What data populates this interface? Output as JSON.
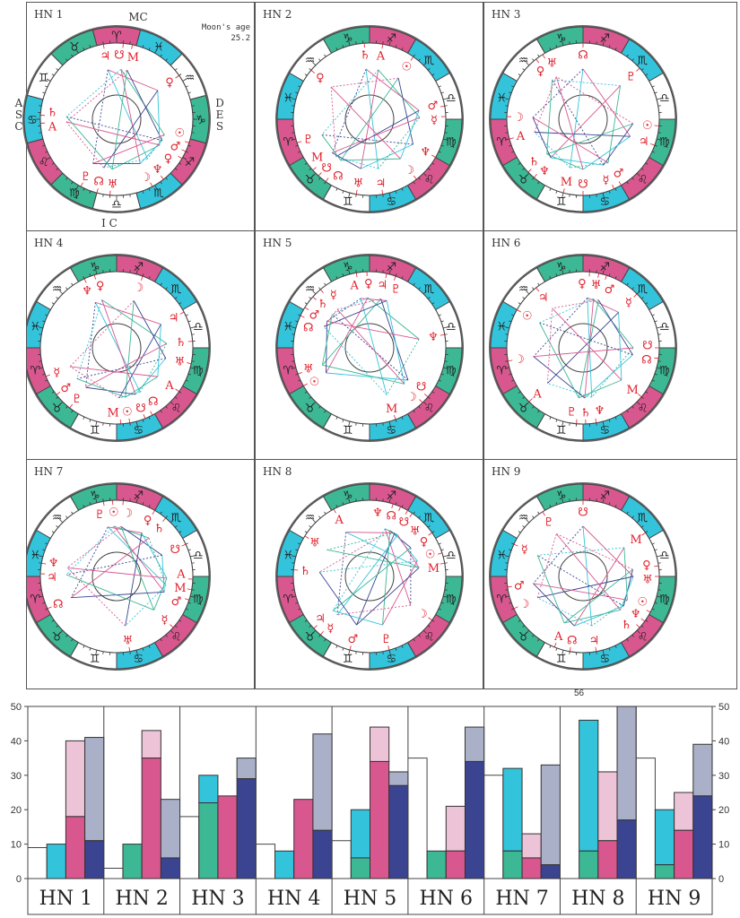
{
  "colors": {
    "fire": "#d9578f",
    "earth": "#3cb894",
    "air": "#ffffff",
    "water": "#33c4dc",
    "glyph": "#e01e2a",
    "ring_border": "#555555",
    "series_white": "#ffffff",
    "series_cyan": "#33c4dc",
    "series_green": "#3cb894",
    "series_pink_light": "#edc3d7",
    "series_pink": "#d9578f",
    "series_gray": "#a9b0c8",
    "series_navy": "#3a4490"
  },
  "signs": [
    "♈",
    "♉",
    "♊",
    "♋",
    "♌",
    "♍",
    "♎",
    "♏",
    "♐",
    "♑",
    "♒",
    "♓"
  ],
  "wheels": [
    {
      "title": "HN 1",
      "top_sign_index": 0,
      "top_offset": 0.5,
      "angles": {
        "mc": "MC",
        "ic": "I C",
        "asc": "ASC",
        "des": "DES"
      },
      "moon_age_label": "Moon's age",
      "moon_age_value": "25.2",
      "planets": [
        {
          "g": "♃",
          "a": 100
        },
        {
          "g": "☋",
          "a": 85
        },
        {
          "g": "M",
          "a": 78
        },
        {
          "g": "♀",
          "a": 35
        },
        {
          "g": "☉",
          "a": -18
        },
        {
          "g": "♂",
          "a": -25
        },
        {
          "g": "♀",
          "a": -31
        },
        {
          "g": "♆",
          "a": -52
        },
        {
          "g": "☽",
          "a": -62
        },
        {
          "g": "♅",
          "a": -95
        },
        {
          "g": "☊",
          "a": -105
        },
        {
          "g": "♇",
          "a": -118
        },
        {
          "g": "♄",
          "a": 177
        },
        {
          "g": "A",
          "a": 183
        }
      ]
    },
    {
      "title": "HN 2",
      "top_sign_index": 9,
      "top_offset": 0,
      "planets": [
        {
          "g": "♄",
          "a": 94
        },
        {
          "g": "A",
          "a": 80
        },
        {
          "g": "☉",
          "a": 55
        },
        {
          "g": "♂",
          "a": 10
        },
        {
          "g": "☿",
          "a": 2
        },
        {
          "g": "♆",
          "a": -30
        },
        {
          "g": "☽",
          "a": -52
        },
        {
          "g": "♃",
          "a": -80
        },
        {
          "g": "♅",
          "a": -100
        },
        {
          "g": "☊",
          "a": -125
        },
        {
          "g": "☋",
          "a": -132
        },
        {
          "g": "M",
          "a": -138
        },
        {
          "g": "♇",
          "a": -162
        },
        {
          "g": "♀",
          "a": 140
        }
      ]
    },
    {
      "title": "HN 3",
      "top_sign_index": 9,
      "top_offset": 0,
      "planets": [
        {
          "g": "☊",
          "a": 90
        },
        {
          "g": "♇",
          "a": 42
        },
        {
          "g": "☉",
          "a": -5
        },
        {
          "g": "♃",
          "a": -20
        },
        {
          "g": "♂",
          "a": -60
        },
        {
          "g": "☿",
          "a": -66
        },
        {
          "g": "☋",
          "a": -90
        },
        {
          "g": "M",
          "a": -105
        },
        {
          "g": "♆",
          "a": -130
        },
        {
          "g": "♄",
          "a": -136
        },
        {
          "g": "A",
          "a": -165
        },
        {
          "g": "☽",
          "a": 178
        },
        {
          "g": "♀",
          "a": 128
        },
        {
          "g": "♅",
          "a": 122
        }
      ]
    },
    {
      "title": "HN 4",
      "top_sign_index": 9,
      "top_offset": 0,
      "planets": [
        {
          "g": "♆",
          "a": 115
        },
        {
          "g": "♀",
          "a": 107
        },
        {
          "g": "☽",
          "a": 70
        },
        {
          "g": "♃",
          "a": 28
        },
        {
          "g": "♄",
          "a": 5
        },
        {
          "g": "♅",
          "a": -12
        },
        {
          "g": "A",
          "a": -35
        },
        {
          "g": "☊",
          "a": -62
        },
        {
          "g": "☋",
          "a": -68
        },
        {
          "g": "☉",
          "a": -80
        },
        {
          "g": "M",
          "a": -87
        },
        {
          "g": "♇",
          "a": -128
        },
        {
          "g": "♂",
          "a": -142
        },
        {
          "g": "☿",
          "a": -158
        }
      ]
    },
    {
      "title": "HN 5",
      "top_sign_index": 9,
      "top_offset": 0,
      "planets": [
        {
          "g": "A",
          "a": 100
        },
        {
          "g": "♀",
          "a": 92
        },
        {
          "g": "♃",
          "a": 77
        },
        {
          "g": "♇",
          "a": 70
        },
        {
          "g": "♆",
          "a": 10
        },
        {
          "g": "☋",
          "a": -40
        },
        {
          "g": "☽",
          "a": -46
        },
        {
          "g": "M",
          "a": -70
        },
        {
          "g": "☉",
          "a": -150
        },
        {
          "g": "♅",
          "a": -160
        },
        {
          "g": "☊",
          "a": 155
        },
        {
          "g": "♂",
          "a": 148
        },
        {
          "g": "♄",
          "a": 138
        },
        {
          "g": "☿",
          "a": 130
        }
      ]
    },
    {
      "title": "HN 6",
      "top_sign_index": 9,
      "top_offset": 0,
      "planets": [
        {
          "g": "♀",
          "a": 85
        },
        {
          "g": "♅",
          "a": 78
        },
        {
          "g": "♂",
          "a": 72
        },
        {
          "g": "☿",
          "a": 45
        },
        {
          "g": "☋",
          "a": 0
        },
        {
          "g": "☊",
          "a": -8
        },
        {
          "g": "M",
          "a": -40
        },
        {
          "g": "♆",
          "a": -80
        },
        {
          "g": "♄",
          "a": -88
        },
        {
          "g": "♇",
          "a": -95
        },
        {
          "g": "A",
          "a": -135
        },
        {
          "g": "☽",
          "a": -170
        },
        {
          "g": "☉",
          "a": 150
        },
        {
          "g": "♃",
          "a": 128
        }
      ]
    },
    {
      "title": "HN 7",
      "top_sign_index": 9,
      "top_offset": 0,
      "planets": [
        {
          "g": "♇",
          "a": 100
        },
        {
          "g": "☉",
          "a": 93
        },
        {
          "g": "☽",
          "a": 85
        },
        {
          "g": "♀",
          "a": 60
        },
        {
          "g": "♄",
          "a": 50
        },
        {
          "g": "☋",
          "a": 25
        },
        {
          "g": "A",
          "a": -2
        },
        {
          "g": "M",
          "a": -10
        },
        {
          "g": "♂",
          "a": -18
        },
        {
          "g": "☿",
          "a": -42
        },
        {
          "g": "♅",
          "a": -80
        },
        {
          "g": "☊",
          "a": -155
        },
        {
          "g": "♃",
          "a": 178
        },
        {
          "g": "♆",
          "a": 170
        }
      ]
    },
    {
      "title": "HN 8",
      "top_sign_index": 9,
      "top_offset": 0,
      "planets": [
        {
          "g": "A",
          "a": 118
        },
        {
          "g": "♆",
          "a": 72
        },
        {
          "g": "☊",
          "a": 66
        },
        {
          "g": "☋",
          "a": 60
        },
        {
          "g": "♅",
          "a": 56
        },
        {
          "g": "♀",
          "a": 35
        },
        {
          "g": "☉",
          "a": 18
        },
        {
          "g": "M",
          "a": 10
        },
        {
          "g": "☽",
          "a": -35
        },
        {
          "g": "♇",
          "a": -75
        },
        {
          "g": "♂",
          "a": -105
        },
        {
          "g": "☿",
          "a": -130
        },
        {
          "g": "♃",
          "a": -137
        },
        {
          "g": "♄",
          "a": 175
        },
        {
          "g": "♅",
          "a": 148
        }
      ]
    },
    {
      "title": "HN 9",
      "top_sign_index": 9,
      "top_offset": 0,
      "planets": [
        {
          "g": "☋",
          "a": 90
        },
        {
          "g": "M",
          "a": 35
        },
        {
          "g": "♀",
          "a": 8
        },
        {
          "g": "♅",
          "a": 0
        },
        {
          "g": "☉",
          "a": -28
        },
        {
          "g": "♆",
          "a": -36
        },
        {
          "g": "♄",
          "a": -42
        },
        {
          "g": "♃",
          "a": -80
        },
        {
          "g": "☊",
          "a": -100
        },
        {
          "g": "A",
          "a": -112
        },
        {
          "g": "☽",
          "a": -155
        },
        {
          "g": "♂",
          "a": -172
        },
        {
          "g": "☿",
          "a": 155
        },
        {
          "g": "♇",
          "a": 122
        }
      ]
    }
  ],
  "chart_data": {
    "type": "bar",
    "title": "",
    "categories": [
      "HN 1",
      "HN 2",
      "HN 3",
      "HN 4",
      "HN 5",
      "HN 6",
      "HN 7",
      "HN 8",
      "HN 9"
    ],
    "ylim": [
      0,
      50
    ],
    "yticks": [
      0,
      10,
      20,
      30,
      40,
      50
    ],
    "overflow_label": "56",
    "series": [
      {
        "name": "white",
        "values": [
          9,
          3,
          18,
          10,
          11,
          35,
          30,
          0,
          35
        ]
      },
      {
        "name": "cyan_green",
        "base": [
          0,
          10,
          22,
          0,
          6,
          8,
          8,
          8,
          4
        ],
        "total": [
          10,
          10,
          30,
          8,
          20,
          8,
          32,
          46,
          20
        ]
      },
      {
        "name": "pink",
        "base": [
          18,
          35,
          24,
          23,
          34,
          8,
          6,
          11,
          14
        ],
        "total": [
          40,
          43,
          24,
          23,
          44,
          21,
          13,
          31,
          25
        ]
      },
      {
        "name": "navy_gray",
        "base": [
          11,
          6,
          29,
          14,
          27,
          34,
          4,
          17,
          24
        ],
        "total": [
          41,
          23,
          35,
          42,
          31,
          44,
          33,
          56,
          39
        ]
      }
    ]
  }
}
